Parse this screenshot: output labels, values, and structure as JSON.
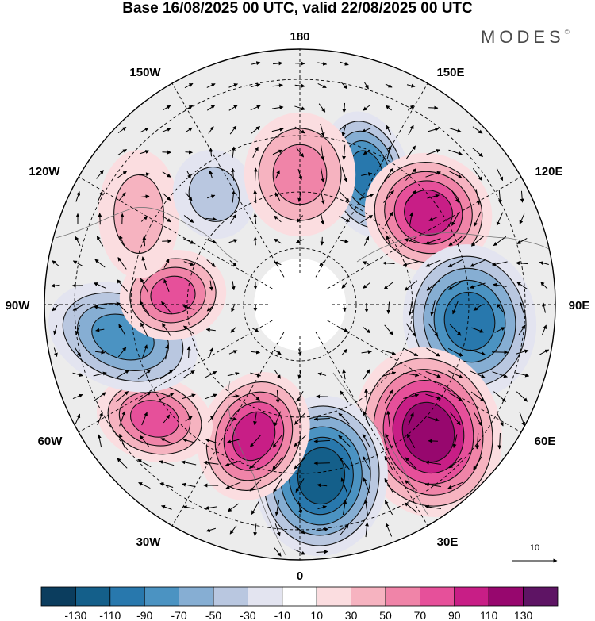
{
  "title": "Base 16/08/2025 00 UTC, valid 22/08/2025 00 UTC",
  "brand": {
    "name": "MODES",
    "mark": "©"
  },
  "longitude_labels": {
    "lon_180": "180",
    "lon_150e": "150E",
    "lon_120e": "120E",
    "lon_90e": "90E",
    "lon_60e": "60E",
    "lon_30e": "30E",
    "lon_0": "0",
    "lon_30w": "30W",
    "lon_60w": "60W",
    "lon_90w": "90W",
    "lon_120w": "120W",
    "lon_150w": "150W"
  },
  "reference_vector": {
    "label": "10"
  },
  "colorbar": {
    "colors": [
      "#0b3d5e",
      "#145f8a",
      "#2878ad",
      "#4b93c2",
      "#86aed3",
      "#b9c7e0",
      "#e3e4f0",
      "#ffffff",
      "#fbdde0",
      "#f6b3c0",
      "#f084a8",
      "#e6509a",
      "#c81e86",
      "#97076e",
      "#5e1464"
    ],
    "ticks": [
      "-130",
      "-110",
      "-90",
      "-70",
      "-50",
      "-30",
      "-10",
      "10",
      "30",
      "50",
      "70",
      "90",
      "110",
      "130"
    ]
  },
  "chart_data": {
    "type": "polar-stereographic anomaly map with wind vectors",
    "title": "Base 16/08/2025 00 UTC, valid 22/08/2025 00 UTC",
    "field_range": [
      -130,
      130
    ],
    "contour_interval": 20,
    "anomaly_centres": [
      {
        "sign": "negative",
        "near": "150E",
        "peak_class": "-90"
      },
      {
        "sign": "positive",
        "near": "120E",
        "peak_class": "90"
      },
      {
        "sign": "negative",
        "near": "90E",
        "peak_class": "-90"
      },
      {
        "sign": "positive",
        "near": "60E",
        "peak_class": "110"
      },
      {
        "sign": "negative",
        "near": "30E/0",
        "peak_class": "-110"
      },
      {
        "sign": "positive",
        "near": "30W",
        "peak_class": "90"
      },
      {
        "sign": "positive",
        "near": "60W",
        "peak_class": "70"
      },
      {
        "sign": "negative",
        "near": "90W",
        "peak_class": "-70"
      },
      {
        "sign": "positive",
        "near": "100W",
        "peak_class": "70"
      },
      {
        "sign": "positive",
        "near": "120W",
        "peak_class": "30"
      },
      {
        "sign": "negative",
        "near": "150W",
        "peak_class": "-30"
      },
      {
        "sign": "positive",
        "near": "180",
        "peak_class": "50"
      }
    ]
  }
}
